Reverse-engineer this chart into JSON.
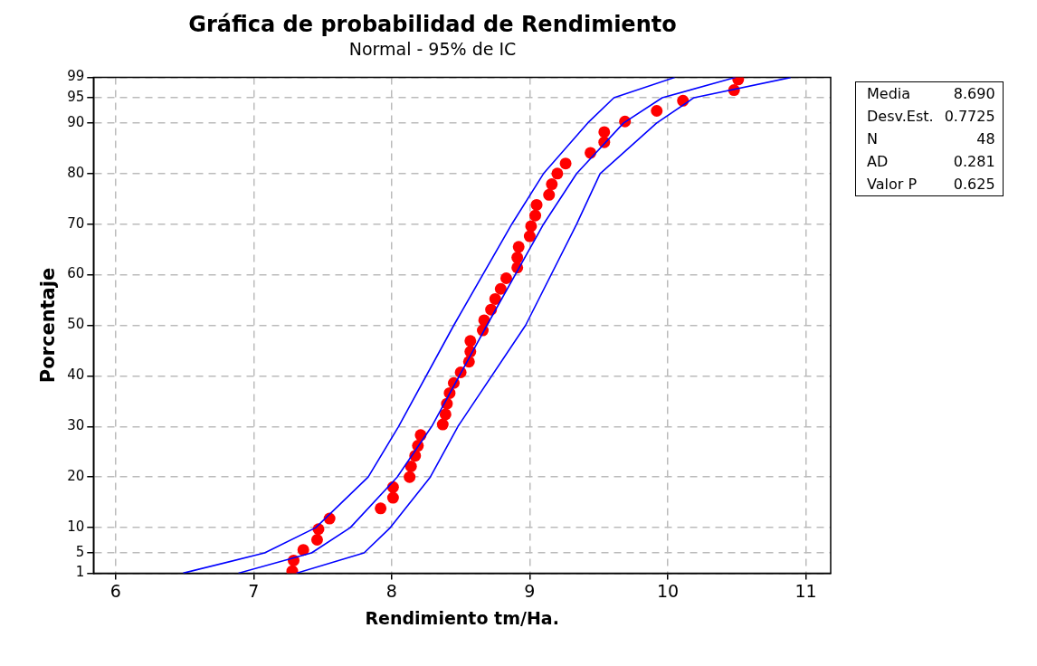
{
  "chart_data": {
    "type": "scatter",
    "title": "Gráfica de probabilidad de Rendimiento",
    "subtitle": "Normal - 95% de IC",
    "xlabel": "Rendimiento tm/Ha.",
    "ylabel": "Porcentaje",
    "xlim": [
      5.84,
      11.18
    ],
    "xticks": [
      6,
      7,
      8,
      9,
      10,
      11
    ],
    "ylim": [
      1,
      99
    ],
    "yticks": [
      1,
      5,
      10,
      20,
      30,
      40,
      50,
      60,
      70,
      80,
      90,
      95,
      99
    ],
    "grid": true,
    "legend": false,
    "marker": "circle",
    "annotations": [
      "Media 8.690",
      "Desv.Est. 0.7725",
      "N 48",
      "AD 0.281",
      "Valor P 0.625"
    ],
    "series": [
      {
        "type": "line",
        "color": "#0000ff",
        "marker": "none",
        "x": [
          6.49,
          7.08,
          7.45,
          7.83,
          8.05,
          8.45,
          8.87,
          9.1,
          9.42,
          9.61,
          10.05
        ],
        "values": [
          1,
          5,
          10,
          20,
          30,
          50,
          70,
          80,
          90,
          95,
          99
        ]
      },
      {
        "type": "line",
        "color": "#0000ff",
        "marker": "none",
        "x": [
          6.89,
          7.42,
          7.7,
          8.04,
          8.29,
          8.69,
          9.1,
          9.34,
          9.68,
          9.96,
          10.49
        ],
        "values": [
          1,
          5,
          10,
          20,
          30,
          50,
          70,
          80,
          90,
          95,
          99
        ]
      },
      {
        "type": "line",
        "color": "#0000ff",
        "marker": "none",
        "x": [
          7.31,
          7.8,
          7.99,
          8.28,
          8.48,
          8.97,
          9.34,
          9.51,
          9.92,
          10.19,
          10.89
        ],
        "values": [
          1,
          5,
          10,
          20,
          30,
          50,
          70,
          80,
          90,
          95,
          99
        ]
      },
      {
        "type": "scatter",
        "color": "#ff0000",
        "x": [
          7.28,
          7.29,
          7.36,
          7.46,
          7.47,
          7.55,
          7.92,
          8.01,
          8.01,
          8.13,
          8.14,
          8.17,
          8.19,
          8.21,
          8.37,
          8.39,
          8.4,
          8.42,
          8.45,
          8.5,
          8.56,
          8.57,
          8.57,
          8.66,
          8.67,
          8.72,
          8.75,
          8.79,
          8.83,
          8.91,
          8.91,
          8.92,
          9.0,
          9.01,
          9.04,
          9.05,
          9.14,
          9.16,
          9.2,
          9.26,
          9.44,
          9.54,
          9.54,
          9.69,
          9.92,
          10.11,
          10.48,
          10.51
        ],
        "values": [
          1.4,
          3.5,
          5.6,
          7.6,
          9.7,
          11.8,
          13.8,
          15.9,
          18.0,
          20.0,
          22.1,
          24.2,
          26.2,
          28.3,
          30.4,
          32.4,
          34.5,
          36.6,
          38.6,
          40.7,
          42.8,
          44.8,
          46.9,
          49.0,
          51.0,
          53.1,
          55.2,
          57.2,
          59.3,
          61.4,
          63.4,
          65.5,
          67.6,
          69.6,
          71.7,
          73.8,
          75.8,
          77.9,
          80.0,
          82.0,
          84.1,
          86.2,
          88.2,
          90.3,
          92.4,
          94.4,
          96.5,
          98.6
        ]
      }
    ]
  }
}
